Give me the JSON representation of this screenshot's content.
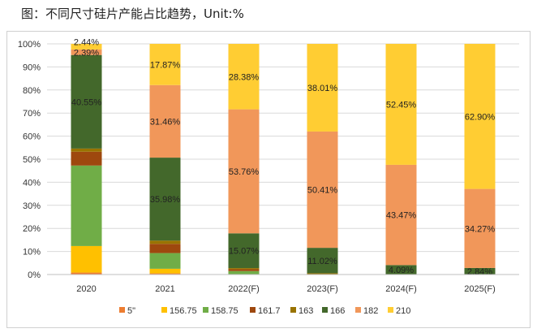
{
  "chart_data": {
    "type": "stacked-bar-100",
    "title": "图：不同尺寸硅片产能占比趋势，Unit:%",
    "categories": [
      "2020",
      "2021",
      "2022(F)",
      "2023(F)",
      "2024(F)",
      "2025(F)"
    ],
    "ylim": [
      0,
      100
    ],
    "yticks": [
      "0%",
      "10%",
      "20%",
      "30%",
      "40%",
      "50%",
      "60%",
      "70%",
      "80%",
      "90%",
      "100%"
    ],
    "grid": true,
    "legend_position": "bottom",
    "series": [
      {
        "name": "5\"",
        "color": "#ED7D31",
        "values": [
          0.85,
          0.5,
          0,
          0,
          0,
          0
        ]
      },
      {
        "name": "156.75",
        "color": "#FFC000",
        "values": [
          11.5,
          2.0,
          0,
          0,
          0,
          0
        ]
      },
      {
        "name": "158.75",
        "color": "#70AD47",
        "values": [
          34.9,
          6.8,
          1.5,
          0,
          0,
          0
        ]
      },
      {
        "name": "161.7",
        "color": "#9E480E",
        "values": [
          6.0,
          4.0,
          0.8,
          0,
          0,
          0
        ]
      },
      {
        "name": "163",
        "color": "#997300",
        "values": [
          1.37,
          1.4,
          0.49,
          0.56,
          0,
          0
        ]
      },
      {
        "name": "166",
        "color": "#43682B",
        "values": [
          40.55,
          35.98,
          15.07,
          11.02,
          4.09,
          2.84
        ]
      },
      {
        "name": "182",
        "color": "#F1975A",
        "values": [
          2.39,
          31.46,
          53.76,
          50.41,
          43.47,
          34.27
        ]
      },
      {
        "name": "210",
        "color": "#FFCD33",
        "values": [
          2.44,
          17.87,
          28.38,
          38.01,
          52.45,
          62.9
        ]
      }
    ],
    "data_labels": {
      "166": [
        "40.55%",
        "35.98%",
        "15.07%",
        "11.02%",
        "4.09%",
        "2.84%"
      ],
      "182": [
        "2.39%",
        "31.46%",
        "53.76%",
        "50.41%",
        "43.47%",
        "34.27%"
      ],
      "210": [
        "2.44%",
        "17.87%",
        "28.38%",
        "38.01%",
        "52.45%",
        "62.90%"
      ]
    }
  }
}
